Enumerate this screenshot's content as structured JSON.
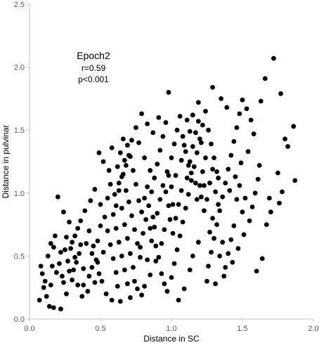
{
  "chart_data": {
    "type": "scatter",
    "xlabel": "Distance in SC",
    "ylabel": "Distance in pulvinar",
    "xlim": [
      0,
      2
    ],
    "ylim": [
      0,
      2.5
    ],
    "x_ticks": [
      "0.0",
      "0.5",
      "1.0",
      "1.5",
      "2.0"
    ],
    "y_ticks": [
      "0.0",
      "0.5",
      "1.0",
      "1.5",
      "2.0",
      "2.5"
    ],
    "grid": false,
    "legend": "none",
    "marker_color": "#000000",
    "annotation": {
      "title": "Epoch2",
      "stat_r": "r=0.59",
      "stat_p": "p<0.001"
    },
    "points": [
      [
        1.72,
        2.07
      ],
      [
        1.66,
        1.91
      ],
      [
        1.29,
        1.84
      ],
      [
        1.77,
        1.79
      ],
      [
        0.98,
        1.8
      ],
      [
        1.63,
        1.73
      ],
      [
        1.86,
        1.53
      ],
      [
        1.8,
        1.43
      ],
      [
        1.82,
        1.37
      ],
      [
        1.75,
        1.16
      ],
      [
        1.78,
        1.01
      ],
      [
        1.87,
        1.1
      ],
      [
        1.69,
        0.96
      ],
      [
        1.76,
        0.92
      ],
      [
        1.7,
        0.85
      ],
      [
        1.67,
        0.75
      ],
      [
        1.6,
        0.38
      ],
      [
        1.64,
        0.48
      ],
      [
        0.08,
        0.42
      ],
      [
        0.1,
        0.25
      ],
      [
        0.12,
        0.18
      ],
      [
        0.14,
        0.1
      ],
      [
        0.17,
        0.09
      ],
      [
        0.22,
        0.08
      ],
      [
        0.09,
        0.36
      ],
      [
        0.13,
        0.5
      ],
      [
        0.15,
        0.6
      ],
      [
        0.18,
        0.66
      ],
      [
        0.2,
        0.97
      ],
      [
        0.24,
        0.85
      ],
      [
        0.28,
        0.77
      ],
      [
        0.07,
        0.15
      ],
      [
        0.11,
        0.3
      ],
      [
        0.16,
        0.42
      ],
      [
        0.3,
        0.31
      ],
      [
        0.33,
        0.45
      ],
      [
        0.35,
        0.52
      ],
      [
        0.38,
        0.4
      ],
      [
        0.4,
        0.6
      ],
      [
        0.42,
        0.7
      ],
      [
        0.45,
        0.58
      ],
      [
        0.47,
        0.47
      ],
      [
        0.49,
        0.36
      ],
      [
        0.41,
        0.22
      ],
      [
        0.37,
        0.18
      ],
      [
        0.34,
        0.27
      ],
      [
        0.26,
        0.2
      ],
      [
        0.29,
        0.56
      ],
      [
        0.32,
        0.66
      ],
      [
        0.36,
        0.78
      ],
      [
        0.39,
        0.86
      ],
      [
        0.43,
        0.94
      ],
      [
        0.46,
        1.03
      ],
      [
        0.5,
        0.91
      ],
      [
        0.53,
        0.81
      ],
      [
        0.55,
        0.7
      ],
      [
        0.57,
        0.59
      ],
      [
        0.59,
        0.48
      ],
      [
        0.61,
        0.37
      ],
      [
        0.62,
        0.26
      ],
      [
        0.58,
        0.15
      ],
      [
        0.54,
        0.2
      ],
      [
        0.51,
        0.3
      ],
      [
        0.48,
        0.45
      ],
      [
        0.44,
        0.52
      ],
      [
        0.31,
        0.39
      ],
      [
        0.27,
        0.46
      ],
      [
        0.25,
        0.55
      ],
      [
        0.23,
        0.34
      ],
      [
        0.21,
        0.44
      ],
      [
        0.6,
        0.99
      ],
      [
        0.63,
        1.08
      ],
      [
        0.66,
        1.15
      ],
      [
        0.68,
        1.22
      ],
      [
        0.7,
        1.3
      ],
      [
        0.72,
        1.42
      ],
      [
        0.65,
        0.88
      ],
      [
        0.67,
        0.75
      ],
      [
        0.69,
        0.64
      ],
      [
        0.71,
        0.52
      ],
      [
        0.73,
        0.41
      ],
      [
        0.74,
        0.3
      ],
      [
        0.76,
        0.24
      ],
      [
        0.64,
        0.14
      ],
      [
        0.56,
        1.18
      ],
      [
        0.52,
        1.25
      ],
      [
        0.49,
        1.32
      ],
      [
        0.58,
        1.36
      ],
      [
        0.78,
        0.57
      ],
      [
        0.8,
        0.68
      ],
      [
        0.82,
        0.79
      ],
      [
        0.84,
        0.9
      ],
      [
        0.86,
        1.01
      ],
      [
        0.88,
        1.12
      ],
      [
        0.9,
        1.23
      ],
      [
        0.92,
        1.34
      ],
      [
        0.94,
        1.45
      ],
      [
        0.96,
        1.56
      ],
      [
        0.79,
        1.63
      ],
      [
        0.83,
        1.55
      ],
      [
        0.87,
        1.48
      ],
      [
        0.91,
        1.6
      ],
      [
        0.75,
        1.52
      ],
      [
        0.77,
        1.4
      ],
      [
        0.81,
        1.28
      ],
      [
        0.85,
        1.18
      ],
      [
        0.89,
        0.46
      ],
      [
        0.93,
        0.36
      ],
      [
        0.95,
        0.28
      ],
      [
        0.97,
        0.22
      ],
      [
        1.0,
        0.33
      ],
      [
        1.02,
        0.44
      ],
      [
        1.04,
        0.55
      ],
      [
        1.06,
        0.66
      ],
      [
        1.08,
        0.77
      ],
      [
        1.1,
        0.88
      ],
      [
        1.12,
        0.99
      ],
      [
        1.14,
        1.1
      ],
      [
        1.16,
        1.21
      ],
      [
        1.18,
        1.32
      ],
      [
        1.2,
        1.43
      ],
      [
        1.22,
        1.54
      ],
      [
        1.24,
        1.65
      ],
      [
        1.11,
        1.58
      ],
      [
        1.26,
        0.42
      ],
      [
        1.28,
        0.53
      ],
      [
        1.3,
        0.64
      ],
      [
        1.32,
        0.75
      ],
      [
        1.34,
        0.86
      ],
      [
        1.36,
        0.97
      ],
      [
        1.38,
        1.08
      ],
      [
        1.4,
        1.19
      ],
      [
        1.42,
        1.3
      ],
      [
        1.44,
        1.41
      ],
      [
        1.46,
        1.52
      ],
      [
        1.48,
        1.63
      ],
      [
        1.35,
        1.75
      ],
      [
        1.39,
        1.68
      ],
      [
        1.5,
        1.74
      ],
      [
        1.53,
        1.67
      ],
      [
        1.56,
        1.58
      ],
      [
        1.58,
        1.47
      ],
      [
        1.25,
        0.3
      ],
      [
        1.31,
        0.28
      ],
      [
        1.37,
        0.34
      ],
      [
        1.43,
        0.45
      ],
      [
        1.47,
        0.56
      ],
      [
        1.51,
        0.67
      ],
      [
        1.55,
        0.78
      ],
      [
        1.57,
        0.89
      ],
      [
        1.59,
        1.0
      ],
      [
        1.61,
        1.11
      ],
      [
        1.62,
        1.22
      ],
      [
        1.54,
        1.33
      ],
      [
        1.49,
        1.24
      ],
      [
        1.45,
        1.13
      ],
      [
        1.41,
        1.02
      ],
      [
        1.33,
        0.91
      ],
      [
        1.29,
        0.8
      ],
      [
        1.27,
        0.69
      ],
      [
        1.05,
        0.15
      ],
      [
        1.01,
        0.68
      ],
      [
        0.99,
        0.79
      ],
      [
        0.98,
        0.9
      ],
      [
        0.96,
        1.01
      ],
      [
        1.03,
        1.14
      ],
      [
        1.07,
        1.26
      ],
      [
        1.09,
        1.38
      ],
      [
        1.13,
        1.49
      ],
      [
        1.15,
        1.62
      ],
      [
        1.19,
        1.72
      ],
      [
        1.17,
        1.08
      ],
      [
        1.21,
        0.97
      ],
      [
        1.23,
        0.86
      ],
      [
        1.19,
        0.61
      ],
      [
        1.15,
        0.5
      ],
      [
        1.13,
        0.39
      ],
      [
        1.09,
        0.24
      ],
      [
        0.85,
        0.35
      ],
      [
        0.83,
        0.47
      ],
      [
        0.81,
        0.26
      ],
      [
        0.79,
        0.19
      ],
      [
        0.86,
        0.62
      ],
      [
        0.88,
        0.73
      ],
      [
        0.9,
        0.84
      ],
      [
        0.92,
        0.95
      ],
      [
        0.94,
        1.06
      ],
      [
        0.97,
        1.17
      ],
      [
        1.0,
        1.28
      ],
      [
        1.02,
        1.39
      ],
      [
        1.04,
        1.5
      ],
      [
        1.06,
        1.61
      ],
      [
        1.08,
        1.45
      ],
      [
        1.1,
        1.33
      ],
      [
        1.12,
        1.22
      ],
      [
        1.14,
        1.16
      ],
      [
        0.55,
        0.96
      ],
      [
        0.57,
        1.07
      ],
      [
        0.59,
        0.83
      ],
      [
        0.61,
        0.72
      ],
      [
        0.63,
        0.61
      ],
      [
        0.65,
        0.5
      ],
      [
        0.67,
        0.39
      ],
      [
        0.69,
        0.28
      ],
      [
        0.71,
        0.17
      ],
      [
        0.62,
        1.21
      ],
      [
        0.64,
        1.32
      ],
      [
        0.66,
        1.43
      ],
      [
        0.68,
        1.02
      ],
      [
        0.7,
        0.93
      ],
      [
        0.72,
        0.82
      ],
      [
        0.74,
        0.71
      ],
      [
        0.76,
        0.6
      ],
      [
        0.78,
        0.49
      ],
      [
        0.42,
        0.34
      ],
      [
        0.44,
        0.41
      ],
      [
        0.46,
        0.29
      ],
      [
        0.48,
        0.62
      ],
      [
        0.5,
        0.74
      ],
      [
        0.52,
        0.53
      ],
      [
        0.38,
        0.27
      ],
      [
        0.36,
        0.59
      ],
      [
        0.34,
        0.72
      ],
      [
        0.32,
        0.49
      ],
      [
        0.3,
        0.61
      ],
      [
        0.28,
        0.38
      ],
      [
        0.26,
        0.65
      ],
      [
        0.24,
        0.29
      ],
      [
        0.22,
        0.53
      ],
      [
        0.19,
        0.37
      ],
      [
        0.17,
        0.57
      ],
      [
        0.15,
        0.27
      ],
      [
        1.46,
        0.95
      ],
      [
        1.48,
        1.06
      ],
      [
        1.5,
        0.85
      ],
      [
        1.52,
        0.96
      ],
      [
        1.44,
        0.74
      ],
      [
        1.42,
        0.63
      ],
      [
        1.4,
        0.52
      ],
      [
        1.38,
        0.41
      ],
      [
        1.36,
        0.61
      ],
      [
        1.34,
        0.5
      ],
      [
        1.32,
        1.17
      ],
      [
        1.3,
        1.28
      ],
      [
        1.28,
        1.39
      ],
      [
        1.26,
        1.5
      ],
      [
        1.24,
        1.28
      ],
      [
        1.22,
        1.17
      ],
      [
        1.2,
        1.06
      ],
      [
        1.18,
        0.95
      ],
      [
        0.93,
        0.6
      ],
      [
        0.95,
        0.71
      ],
      [
        0.91,
        0.49
      ],
      [
        0.89,
        0.58
      ],
      [
        0.87,
        0.81
      ],
      [
        0.85,
        0.72
      ],
      [
        0.83,
        1.05
      ],
      [
        0.81,
        0.96
      ],
      [
        0.79,
        0.85
      ],
      [
        0.77,
        0.94
      ],
      [
        0.75,
        1.07
      ],
      [
        0.73,
        1.18
      ],
      [
        0.71,
        1.29
      ],
      [
        0.69,
        1.38
      ],
      [
        0.67,
        1.26
      ],
      [
        0.65,
        1.13
      ],
      [
        0.63,
        1.02
      ],
      [
        0.61,
        0.9
      ],
      [
        1.07,
        1.02
      ],
      [
        1.05,
        0.91
      ],
      [
        1.03,
        0.8
      ],
      [
        1.01,
        0.91
      ],
      [
        1.0,
        1.05
      ],
      [
        0.98,
        1.14
      ],
      [
        1.11,
        1.12
      ],
      [
        1.13,
        1.25
      ],
      [
        1.15,
        1.37
      ],
      [
        1.17,
        1.48
      ],
      [
        1.19,
        1.57
      ],
      [
        1.21,
        1.4
      ],
      [
        1.23,
        1.06
      ],
      [
        1.25,
        0.95
      ],
      [
        1.27,
        1.08
      ],
      [
        1.29,
        1.19
      ],
      [
        1.31,
        1.01
      ],
      [
        1.33,
        1.12
      ]
    ]
  }
}
